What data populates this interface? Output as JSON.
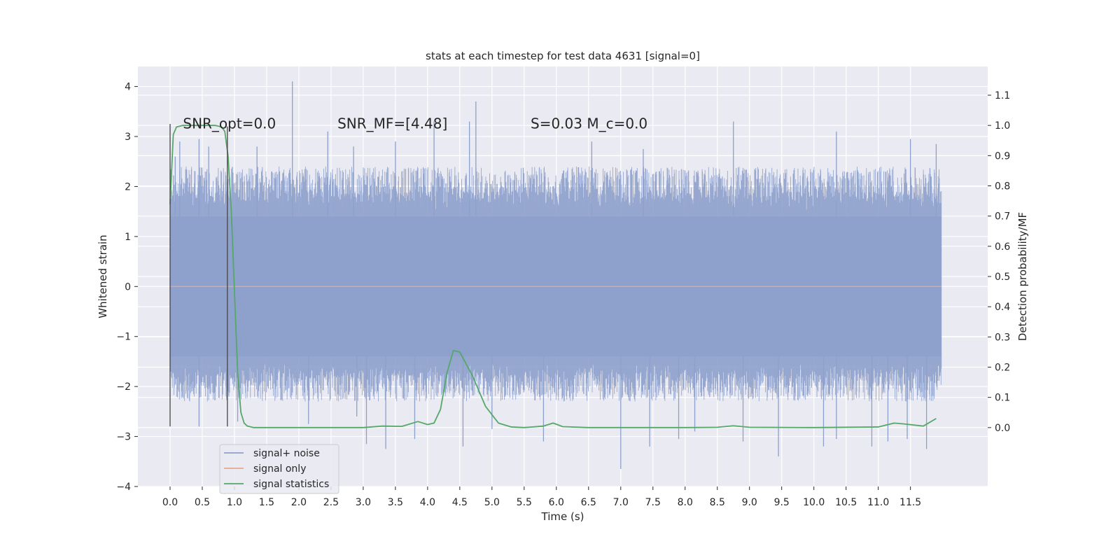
{
  "chart_data": {
    "type": "line",
    "title": "stats at each timestep for test data 4631 [signal=0]",
    "xlabel": "Time (s)",
    "ylabel": "Whitened strain",
    "y2label": "Detection probability/MF",
    "xlim": [
      -0.5,
      12.7
    ],
    "ylim": [
      -4.0,
      4.4
    ],
    "y2lim": [
      -0.195,
      1.195
    ],
    "x_ticks": [
      0.0,
      0.5,
      1.0,
      1.5,
      2.0,
      2.5,
      3.0,
      3.5,
      4.0,
      4.5,
      5.0,
      5.5,
      6.0,
      6.5,
      7.0,
      7.5,
      8.0,
      8.5,
      9.0,
      9.5,
      10.0,
      10.5,
      11.0,
      11.5
    ],
    "x_tick_labels": [
      "0.0",
      "0.5",
      "1.0",
      "1.5",
      "2.0",
      "2.5",
      "3.0",
      "3.5",
      "4.0",
      "4.5",
      "5.0",
      "5.5",
      "6.0",
      "6.5",
      "7.0",
      "7.5",
      "8.0",
      "8.5",
      "9.0",
      "9.5",
      "10.0",
      "10.5",
      "11.0",
      "11.5"
    ],
    "y_ticks": [
      -4,
      -3,
      -2,
      -1,
      0,
      1,
      2,
      3,
      4
    ],
    "y_tick_labels": [
      "−4",
      "−3",
      "−2",
      "−1",
      "0",
      "1",
      "2",
      "3",
      "4"
    ],
    "y2_ticks": [
      0.0,
      0.1,
      0.2,
      0.3,
      0.4,
      0.5,
      0.6,
      0.7,
      0.8,
      0.9,
      1.0,
      1.1
    ],
    "y2_tick_labels": [
      "0.0",
      "0.1",
      "0.2",
      "0.3",
      "0.4",
      "0.5",
      "0.6",
      "0.7",
      "0.8",
      "0.9",
      "1.0",
      "1.1"
    ],
    "grid": true,
    "legend_placement": "lower-left",
    "annotations": [
      {
        "text": "SNR_opt=0.0",
        "x": 0.2,
        "y": 3.26
      },
      {
        "text": "SNR_MF=[4.48]",
        "x": 2.6,
        "y": 3.26
      },
      {
        "text": "S=0.03   M_c=0.0",
        "x": 5.6,
        "y": 3.26
      }
    ],
    "vertical_markers": [
      {
        "x": 0.0,
        "y_range": [
          -2.8,
          3.25
        ]
      },
      {
        "x": 0.89,
        "y_range": [
          -2.8,
          3.2
        ]
      }
    ],
    "series": [
      {
        "name": "signal+ noise",
        "color": "#8da0cb",
        "axis": "left",
        "kind": "noise",
        "x_range": [
          0.0,
          11.98
        ],
        "samples": 2400,
        "core_amplitude": [
          -1.4,
          1.4
        ],
        "typical_extent": [
          -2.3,
          2.4
        ],
        "spikes": [
          {
            "x": 0.08,
            "y": 2.6
          },
          {
            "x": 0.15,
            "y": 2.9
          },
          {
            "x": 0.45,
            "y": 2.95
          },
          {
            "x": 0.6,
            "y": 2.8
          },
          {
            "x": 1.35,
            "y": 2.8
          },
          {
            "x": 1.9,
            "y": 4.1
          },
          {
            "x": 2.45,
            "y": 3.1
          },
          {
            "x": 2.85,
            "y": 2.8
          },
          {
            "x": 3.5,
            "y": 2.9
          },
          {
            "x": 4.1,
            "y": 3.3
          },
          {
            "x": 4.65,
            "y": 3.3
          },
          {
            "x": 4.75,
            "y": 3.7
          },
          {
            "x": 6.55,
            "y": 2.9
          },
          {
            "x": 7.35,
            "y": 2.75
          },
          {
            "x": 8.75,
            "y": 3.3
          },
          {
            "x": 10.35,
            "y": 3.1
          },
          {
            "x": 11.5,
            "y": 2.95
          },
          {
            "x": 11.9,
            "y": 2.85
          },
          {
            "x": 0.45,
            "y": -2.8
          },
          {
            "x": 1.05,
            "y": -2.7
          },
          {
            "x": 2.15,
            "y": -2.75
          },
          {
            "x": 2.9,
            "y": -2.6
          },
          {
            "x": 3.05,
            "y": -3.15
          },
          {
            "x": 3.35,
            "y": -3.25
          },
          {
            "x": 3.8,
            "y": -3.05
          },
          {
            "x": 4.55,
            "y": -3.2
          },
          {
            "x": 5.0,
            "y": -2.85
          },
          {
            "x": 5.8,
            "y": -3.1
          },
          {
            "x": 7.0,
            "y": -3.65
          },
          {
            "x": 7.45,
            "y": -3.2
          },
          {
            "x": 7.9,
            "y": -3.05
          },
          {
            "x": 8.15,
            "y": -2.9
          },
          {
            "x": 8.9,
            "y": -3.1
          },
          {
            "x": 9.45,
            "y": -3.4
          },
          {
            "x": 10.15,
            "y": -3.2
          },
          {
            "x": 10.35,
            "y": -3.05
          },
          {
            "x": 10.9,
            "y": -3.2
          },
          {
            "x": 11.15,
            "y": -3.1
          },
          {
            "x": 11.45,
            "y": -3.05
          },
          {
            "x": 11.75,
            "y": -3.25
          }
        ]
      },
      {
        "name": "signal only",
        "color": "#e8a889",
        "axis": "left",
        "x": [
          0.0,
          11.98
        ],
        "y": [
          0.0,
          0.0
        ]
      },
      {
        "name": "signal statistics",
        "color": "#55a868",
        "axis": "right",
        "x": [
          0.0,
          0.05,
          0.1,
          0.2,
          0.3,
          0.5,
          0.7,
          0.8,
          0.85,
          0.9,
          0.95,
          1.0,
          1.05,
          1.1,
          1.15,
          1.2,
          1.3,
          1.5,
          2.0,
          2.5,
          3.0,
          3.3,
          3.6,
          3.85,
          4.0,
          4.1,
          4.2,
          4.3,
          4.4,
          4.5,
          4.7,
          4.9,
          5.1,
          5.3,
          5.5,
          5.8,
          5.95,
          6.1,
          6.5,
          7.0,
          8.0,
          8.5,
          8.75,
          9.0,
          10.0,
          11.0,
          11.25,
          11.4,
          11.7,
          11.9
        ],
        "y": [
          0.74,
          0.97,
          0.995,
          1.0,
          1.0,
          1.0,
          1.0,
          0.995,
          0.98,
          0.9,
          0.72,
          0.45,
          0.18,
          0.05,
          0.015,
          0.005,
          0.0,
          0.0,
          0.0,
          0.0,
          0.0,
          0.005,
          0.004,
          0.02,
          0.01,
          0.015,
          0.06,
          0.18,
          0.255,
          0.25,
          0.17,
          0.07,
          0.015,
          0.002,
          0.0,
          0.005,
          0.015,
          0.003,
          0.0,
          0.0,
          0.0,
          0.001,
          0.006,
          0.001,
          0.0,
          0.002,
          0.015,
          0.012,
          0.005,
          0.03
        ]
      }
    ]
  }
}
